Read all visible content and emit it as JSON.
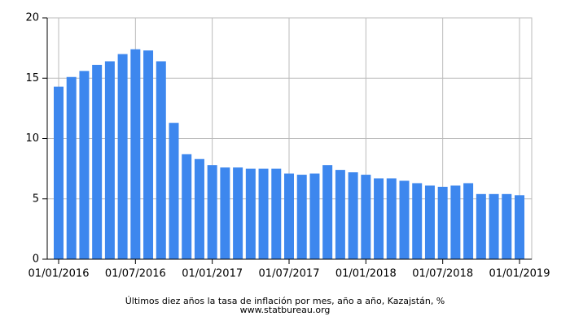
{
  "chart_data": {
    "type": "bar",
    "title": "Últimos diez años la tasa de inflación por mes, año a año, Kazajstán, %",
    "subtitle": "www.statbureau.org",
    "categories": [
      "01/01/2016",
      null,
      null,
      null,
      null,
      null,
      "01/07/2016",
      null,
      null,
      null,
      null,
      null,
      "01/01/2017",
      null,
      null,
      null,
      null,
      null,
      "01/07/2017",
      null,
      null,
      null,
      null,
      null,
      "01/01/2018",
      null,
      null,
      null,
      null,
      null,
      "01/07/2018",
      null,
      null,
      null,
      null,
      null,
      "01/01/2019"
    ],
    "values": [
      14.3,
      15.1,
      15.6,
      16.1,
      16.4,
      17.0,
      17.4,
      17.3,
      16.4,
      11.3,
      8.7,
      8.3,
      7.8,
      7.6,
      7.6,
      7.5,
      7.5,
      7.5,
      7.1,
      7.0,
      7.1,
      7.8,
      7.4,
      7.2,
      7.0,
      6.7,
      6.7,
      6.5,
      6.3,
      6.1,
      6.0,
      6.1,
      6.3,
      5.4,
      5.4,
      5.4,
      5.3
    ],
    "color": "#3d87ee",
    "ylim": [
      0,
      20
    ],
    "yticks": [
      0,
      5,
      10,
      15,
      20
    ],
    "grid": true
  }
}
